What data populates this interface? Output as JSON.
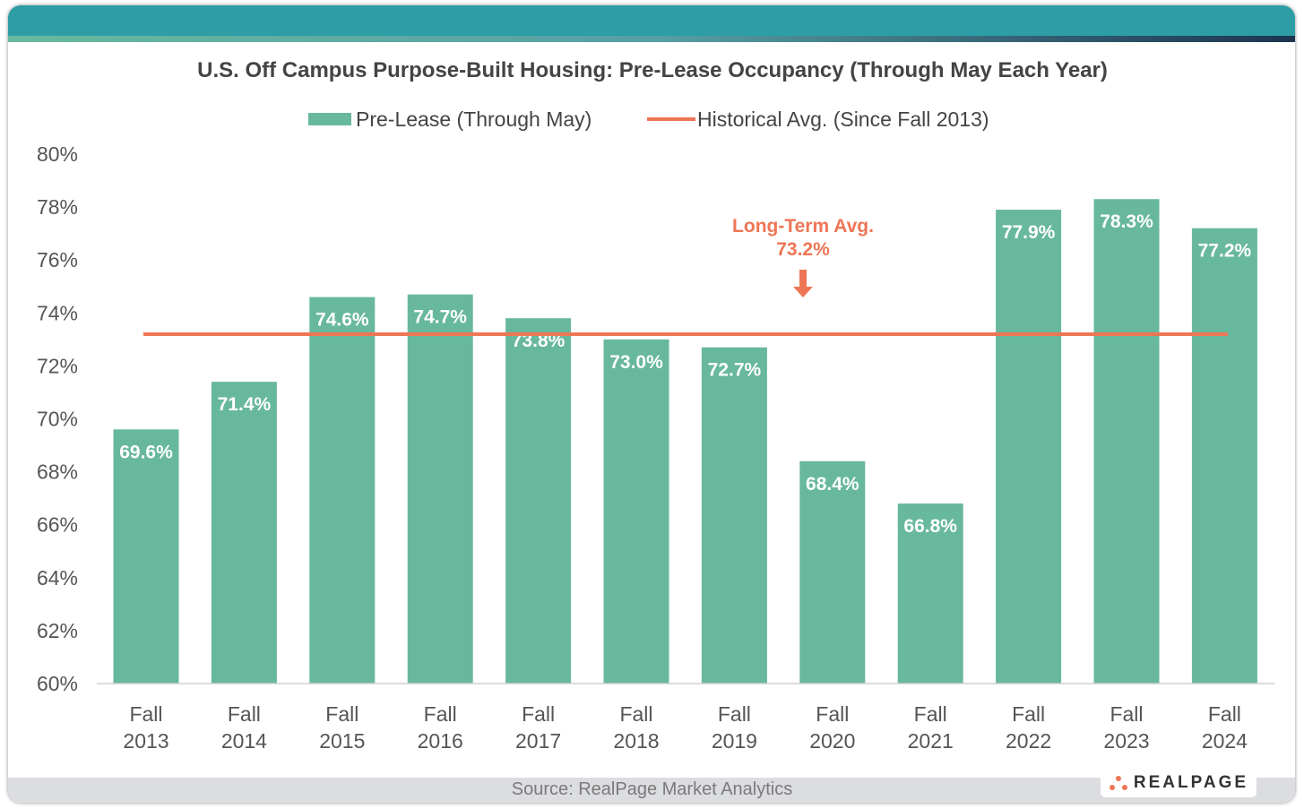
{
  "colors": {
    "bar": "#68b89d",
    "avg_line": "#ee7656",
    "header": "#2d9ea5"
  },
  "chart_data": {
    "type": "bar",
    "title": "U.S. Off Campus Purpose-Built Housing: Pre-Lease Occupancy (Through May Each Year)",
    "categories": [
      [
        "Fall",
        "2013"
      ],
      [
        "Fall",
        "2014"
      ],
      [
        "Fall",
        "2015"
      ],
      [
        "Fall",
        "2016"
      ],
      [
        "Fall",
        "2017"
      ],
      [
        "Fall",
        "2018"
      ],
      [
        "Fall",
        "2019"
      ],
      [
        "Fall",
        "2020"
      ],
      [
        "Fall",
        "2021"
      ],
      [
        "Fall",
        "2022"
      ],
      [
        "Fall",
        "2023"
      ],
      [
        "Fall",
        "2024"
      ]
    ],
    "series": [
      {
        "name": "Pre-Lease (Through May)",
        "values": [
          69.6,
          71.4,
          74.6,
          74.7,
          73.8,
          73.0,
          72.7,
          68.4,
          66.8,
          77.9,
          78.3,
          77.2
        ]
      }
    ],
    "data_labels": [
      "69.6%",
      "71.4%",
      "74.6%",
      "74.7%",
      "73.8%",
      "73.0%",
      "72.7%",
      "68.4%",
      "66.8%",
      "77.9%",
      "78.3%",
      "77.2%"
    ],
    "reference_line": {
      "name": "Historical Avg. (Since Fall 2013)",
      "value": 73.2
    },
    "annotation": {
      "line1": "Long-Term Avg.",
      "line2": "73.2%"
    },
    "ylim": [
      60,
      80
    ],
    "yticks": [
      "60%",
      "62%",
      "64%",
      "66%",
      "68%",
      "70%",
      "72%",
      "74%",
      "76%",
      "78%",
      "80%"
    ],
    "grid": false,
    "legend": "top"
  },
  "footer": {
    "source": "Source: RealPage Market Analytics",
    "logo": "REALPAGE"
  }
}
